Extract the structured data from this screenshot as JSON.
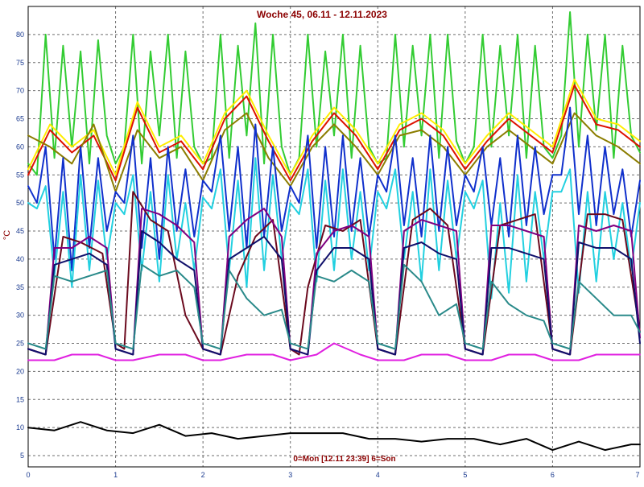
{
  "chart_data": {
    "type": "line",
    "title": "Woche 45, 06.11 - 12.11.2023",
    "footer": "0=Mon [12.11 23:39] 6=Son",
    "ylabel": "°C",
    "xlabel": "",
    "xlim": [
      0,
      7
    ],
    "ylim": [
      3,
      85
    ],
    "x_ticks": [
      "0",
      "1",
      "2",
      "3",
      "4",
      "5",
      "6",
      "7"
    ],
    "y_ticks": [
      "5",
      "10",
      "15",
      "20",
      "25",
      "30",
      "35",
      "40",
      "45",
      "50",
      "55",
      "60",
      "65",
      "70",
      "75",
      "80"
    ],
    "grid": true,
    "legend": "none",
    "series": [
      {
        "color": "#33cc33",
        "x": [
          0,
          0.1,
          0.2,
          0.3,
          0.4,
          0.5,
          0.6,
          0.7,
          0.8,
          0.9,
          1.0,
          1.1,
          1.2,
          1.3,
          1.4,
          1.5,
          1.6,
          1.7,
          1.8,
          1.9,
          2.0,
          2.1,
          2.2,
          2.3,
          2.4,
          2.5,
          2.6,
          2.7,
          2.8,
          2.9,
          3.0,
          3.1,
          3.2,
          3.3,
          3.4,
          3.5,
          3.6,
          3.7,
          3.8,
          3.9,
          4.0,
          4.1,
          4.2,
          4.3,
          4.4,
          4.5,
          4.6,
          4.7,
          4.8,
          4.9,
          5.0,
          5.1,
          5.2,
          5.3,
          5.4,
          5.5,
          5.6,
          5.7,
          5.8,
          5.9,
          6.0,
          6.1,
          6.2,
          6.3,
          6.4,
          6.5,
          6.6,
          6.7,
          6.8,
          6.9,
          7.0
        ],
        "values": [
          57,
          55,
          80,
          58,
          78,
          60,
          77,
          57,
          79,
          62,
          57,
          60,
          80,
          57,
          77,
          62,
          80,
          58,
          77,
          60,
          57,
          58,
          80,
          58,
          78,
          62,
          82,
          57,
          80,
          60,
          55,
          58,
          80,
          60,
          77,
          62,
          80,
          58,
          78,
          60,
          57,
          58,
          80,
          60,
          78,
          62,
          80,
          58,
          80,
          61,
          57,
          60,
          80,
          60,
          78,
          62,
          80,
          58,
          78,
          60,
          58,
          62,
          84,
          60,
          80,
          63,
          80,
          58,
          78,
          62,
          59
        ]
      },
      {
        "color": "#ffee00",
        "x": [
          0,
          0.25,
          0.5,
          0.75,
          1.0,
          1.25,
          1.5,
          1.75,
          2.0,
          2.25,
          2.5,
          2.75,
          3.0,
          3.25,
          3.5,
          3.75,
          4.0,
          4.25,
          4.5,
          4.75,
          5.0,
          5.25,
          5.5,
          5.75,
          6.0,
          6.25,
          6.5,
          6.75,
          7.0
        ],
        "values": [
          56,
          64,
          60,
          63,
          55,
          68,
          60,
          62,
          57,
          66,
          70,
          62,
          55,
          62,
          67,
          63,
          57,
          64,
          66,
          63,
          57,
          62,
          66,
          63,
          60,
          72,
          65,
          64,
          61
        ]
      },
      {
        "color": "#dd1100",
        "x": [
          0,
          0.25,
          0.5,
          0.75,
          1.0,
          1.25,
          1.5,
          1.75,
          2.0,
          2.25,
          2.5,
          2.75,
          3.0,
          3.25,
          3.5,
          3.75,
          4.0,
          4.25,
          4.5,
          4.75,
          5.0,
          5.25,
          5.5,
          5.75,
          6.0,
          6.25,
          6.5,
          6.75,
          7.0
        ],
        "values": [
          55,
          63,
          59,
          62,
          54,
          67,
          59,
          61,
          56,
          65,
          69,
          61,
          54,
          61,
          66,
          62,
          56,
          63,
          65,
          62,
          56,
          61,
          65,
          62,
          59,
          71,
          64,
          63,
          60
        ]
      },
      {
        "color": "#8b7d00",
        "x": [
          0,
          0.25,
          0.5,
          0.75,
          1.0,
          1.25,
          1.5,
          1.75,
          2.0,
          2.25,
          2.5,
          2.75,
          3.0,
          3.25,
          3.5,
          3.75,
          4.0,
          4.25,
          4.5,
          4.75,
          5.0,
          5.25,
          5.5,
          5.75,
          6.0,
          6.25,
          6.5,
          6.75,
          7.0
        ],
        "values": [
          62,
          60,
          57,
          64,
          52,
          63,
          58,
          60,
          54,
          63,
          66,
          58,
          53,
          60,
          64,
          60,
          55,
          62,
          63,
          60,
          55,
          60,
          63,
          60,
          57,
          66,
          62,
          60,
          57
        ]
      },
      {
        "color": "#1030cc",
        "x": [
          0,
          0.1,
          0.2,
          0.3,
          0.4,
          0.5,
          0.6,
          0.7,
          0.8,
          0.9,
          1.0,
          1.1,
          1.2,
          1.3,
          1.4,
          1.5,
          1.6,
          1.7,
          1.8,
          1.9,
          2.0,
          2.1,
          2.2,
          2.3,
          2.4,
          2.5,
          2.6,
          2.7,
          2.8,
          2.9,
          3.0,
          3.1,
          3.2,
          3.3,
          3.4,
          3.5,
          3.6,
          3.7,
          3.8,
          3.9,
          4.0,
          4.1,
          4.2,
          4.3,
          4.4,
          4.5,
          4.6,
          4.7,
          4.8,
          4.9,
          5.0,
          5.1,
          5.2,
          5.3,
          5.4,
          5.5,
          5.6,
          5.7,
          5.8,
          5.9,
          6.0,
          6.1,
          6.2,
          6.3,
          6.4,
          6.5,
          6.6,
          6.7,
          6.8,
          6.9,
          7.0
        ],
        "values": [
          53,
          50,
          60,
          40,
          58,
          38,
          60,
          42,
          58,
          45,
          52,
          50,
          62,
          42,
          58,
          40,
          60,
          45,
          56,
          44,
          54,
          52,
          62,
          45,
          60,
          42,
          64,
          44,
          60,
          45,
          53,
          50,
          62,
          42,
          60,
          44,
          62,
          45,
          58,
          44,
          55,
          52,
          62,
          46,
          58,
          44,
          62,
          45,
          60,
          46,
          55,
          52,
          60,
          46,
          58,
          44,
          62,
          46,
          60,
          48,
          55,
          55,
          67,
          48,
          62,
          46,
          60,
          48,
          56,
          44,
          54
        ]
      },
      {
        "color": "#22d0e0",
        "x": [
          0,
          0.1,
          0.2,
          0.3,
          0.4,
          0.5,
          0.6,
          0.7,
          0.8,
          0.9,
          1.0,
          1.1,
          1.2,
          1.3,
          1.4,
          1.5,
          1.6,
          1.7,
          1.8,
          1.9,
          2.0,
          2.1,
          2.2,
          2.3,
          2.4,
          2.5,
          2.6,
          2.7,
          2.8,
          2.9,
          3.0,
          3.1,
          3.2,
          3.3,
          3.4,
          3.5,
          3.6,
          3.7,
          3.8,
          3.9,
          4.0,
          4.1,
          4.2,
          4.3,
          4.4,
          4.5,
          4.6,
          4.7,
          4.8,
          4.9,
          5.0,
          5.1,
          5.2,
          5.3,
          5.4,
          5.5,
          5.6,
          5.7,
          5.8,
          5.9,
          6.0,
          6.1,
          6.2,
          6.3,
          6.4,
          6.5,
          6.6,
          6.7,
          6.8,
          6.9,
          7.0
        ],
        "values": [
          50,
          49,
          53,
          37,
          52,
          35,
          55,
          38,
          54,
          40,
          50,
          48,
          55,
          38,
          52,
          36,
          55,
          40,
          50,
          38,
          51,
          49,
          56,
          38,
          54,
          35,
          58,
          38,
          55,
          40,
          50,
          48,
          56,
          36,
          54,
          38,
          56,
          40,
          52,
          38,
          52,
          49,
          56,
          40,
          52,
          36,
          56,
          38,
          54,
          40,
          52,
          49,
          54,
          33,
          50,
          34,
          55,
          36,
          52,
          40,
          52,
          52,
          56,
          34,
          52,
          36,
          52,
          40,
          50,
          38,
          50
        ]
      },
      {
        "color": "#6b0a1e",
        "x": [
          0,
          0.2,
          0.4,
          0.6,
          0.85,
          1.0,
          1.1,
          1.2,
          1.4,
          1.6,
          1.8,
          2.0,
          2.2,
          2.4,
          2.6,
          2.8,
          3.0,
          3.1,
          3.2,
          3.4,
          3.6,
          3.8,
          4.0,
          4.2,
          4.4,
          4.6,
          4.8,
          5.0,
          5.2,
          5.4,
          5.6,
          5.8,
          6.0,
          6.2,
          6.4,
          6.6,
          6.8,
          7.0
        ],
        "values": [
          24,
          23,
          44,
          43,
          41,
          25,
          24,
          52,
          47,
          45,
          30,
          24,
          23,
          37,
          44,
          47,
          24,
          23,
          35,
          46,
          45,
          47,
          24,
          23,
          47,
          49,
          46,
          24,
          23,
          46,
          47,
          48,
          24,
          23,
          48,
          48,
          47,
          27
        ]
      },
      {
        "color": "#800080",
        "x": [
          0,
          0.2,
          0.3,
          0.5,
          0.7,
          0.9,
          1.0,
          1.2,
          1.3,
          1.5,
          1.7,
          1.9,
          2.0,
          2.2,
          2.3,
          2.5,
          2.7,
          2.9,
          3.0,
          3.2,
          3.3,
          3.5,
          3.7,
          3.9,
          4.0,
          4.2,
          4.3,
          4.5,
          4.7,
          4.9,
          5.0,
          5.2,
          5.3,
          5.5,
          5.7,
          5.9,
          6.0,
          6.2,
          6.3,
          6.5,
          6.7,
          6.9,
          7.0
        ],
        "values": [
          24,
          23,
          42,
          42,
          44,
          42,
          24,
          23,
          49,
          48,
          46,
          43,
          24,
          23,
          44,
          47,
          49,
          44,
          24,
          23,
          41,
          45,
          46,
          44,
          24,
          23,
          45,
          47,
          46,
          45,
          24,
          23,
          46,
          46,
          45,
          44,
          24,
          23,
          46,
          45,
          46,
          45,
          26
        ]
      },
      {
        "color": "#10106b",
        "x": [
          0,
          0.2,
          0.3,
          0.5,
          0.7,
          0.9,
          1.0,
          1.2,
          1.3,
          1.5,
          1.7,
          1.9,
          2.0,
          2.2,
          2.3,
          2.5,
          2.7,
          2.9,
          3.0,
          3.2,
          3.3,
          3.5,
          3.7,
          3.9,
          4.0,
          4.2,
          4.3,
          4.5,
          4.7,
          4.9,
          5.0,
          5.2,
          5.3,
          5.5,
          5.7,
          5.9,
          6.0,
          6.2,
          6.3,
          6.5,
          6.7,
          6.9,
          7.0
        ],
        "values": [
          24,
          23,
          39,
          40,
          41,
          39,
          24,
          23,
          45,
          43,
          40,
          38,
          24,
          23,
          40,
          42,
          44,
          40,
          24,
          23,
          38,
          42,
          42,
          40,
          24,
          23,
          42,
          43,
          41,
          40,
          24,
          23,
          42,
          42,
          41,
          40,
          24,
          23,
          43,
          42,
          42,
          40,
          25
        ]
      },
      {
        "color": "#2a8a8a",
        "x": [
          0,
          0.2,
          0.3,
          0.5,
          0.7,
          0.9,
          1.0,
          1.2,
          1.3,
          1.5,
          1.7,
          1.9,
          2.0,
          2.2,
          2.3,
          2.5,
          2.7,
          2.9,
          3.0,
          3.2,
          3.3,
          3.5,
          3.7,
          3.9,
          4.0,
          4.2,
          4.3,
          4.5,
          4.7,
          4.9,
          5.0,
          5.2,
          5.3,
          5.5,
          5.7,
          5.9,
          6.0,
          6.2,
          6.3,
          6.5,
          6.7,
          6.9,
          7.0
        ],
        "values": [
          25,
          24,
          37,
          36,
          37,
          38,
          25,
          24,
          39,
          37,
          38,
          35,
          25,
          24,
          38,
          33,
          30,
          31,
          25,
          24,
          37,
          36,
          38,
          36,
          25,
          24,
          39,
          36,
          30,
          32,
          25,
          24,
          36,
          32,
          30,
          29,
          25,
          24,
          36,
          33,
          30,
          30,
          27
        ]
      },
      {
        "color": "#e020e0",
        "x": [
          0,
          0.3,
          0.5,
          0.8,
          1.0,
          1.2,
          1.5,
          1.8,
          2.0,
          2.2,
          2.5,
          2.8,
          3.0,
          3.3,
          3.5,
          3.8,
          4.0,
          4.3,
          4.5,
          4.8,
          5.0,
          5.3,
          5.5,
          5.8,
          6.0,
          6.3,
          6.5,
          6.8,
          7.0
        ],
        "values": [
          22,
          22,
          23,
          23,
          22,
          22,
          23,
          23,
          22,
          22,
          23,
          23,
          22,
          23,
          25,
          23,
          22,
          22,
          23,
          23,
          22,
          22,
          23,
          23,
          22,
          22,
          23,
          23,
          23
        ]
      },
      {
        "color": "#000000",
        "x": [
          0,
          0.3,
          0.6,
          0.9,
          1.2,
          1.5,
          1.8,
          2.1,
          2.4,
          2.7,
          3.0,
          3.3,
          3.6,
          3.9,
          4.2,
          4.5,
          4.8,
          5.1,
          5.4,
          5.7,
          6.0,
          6.3,
          6.6,
          6.9,
          7.0
        ],
        "values": [
          10,
          9.5,
          11,
          9.5,
          9,
          10.5,
          8.5,
          9,
          8,
          8.5,
          9,
          9,
          9,
          8,
          8,
          7.5,
          8,
          8,
          7,
          8,
          6,
          7.5,
          6,
          7,
          7
        ]
      }
    ]
  }
}
